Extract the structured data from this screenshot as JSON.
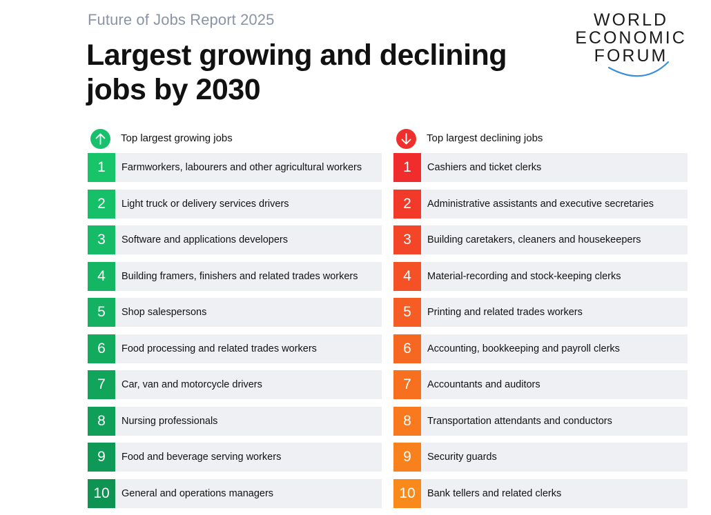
{
  "header": {
    "kicker": "Future of Jobs Report 2025",
    "title": "Largest growing and declining jobs by 2030"
  },
  "logo": {
    "lines": [
      "WORLD",
      "ECONOMIC",
      "FORUM"
    ],
    "arc_color": "#3b8fd9"
  },
  "growing": {
    "label": "Top largest growing jobs",
    "icon": "arrow-up-icon",
    "color": "#16c06c",
    "rank_colors": [
      "#18c46a",
      "#16c069",
      "#15bb67",
      "#14b664",
      "#13b161",
      "#12ab5e",
      "#11a55b",
      "#109f58",
      "#0f9956",
      "#0e9353"
    ],
    "items": [
      {
        "rank": "1",
        "job": "Farmworkers, labourers and other agricultural workers"
      },
      {
        "rank": "2",
        "job": "Light truck or delivery services drivers"
      },
      {
        "rank": "3",
        "job": "Software and applications developers"
      },
      {
        "rank": "4",
        "job": "Building framers, finishers and related trades workers"
      },
      {
        "rank": "5",
        "job": "Shop salespersons"
      },
      {
        "rank": "6",
        "job": "Food processing and related trades workers"
      },
      {
        "rank": "7",
        "job": "Car, van and motorcycle drivers"
      },
      {
        "rank": "8",
        "job": "Nursing professionals"
      },
      {
        "rank": "9",
        "job": "Food and beverage serving workers"
      },
      {
        "rank": "10",
        "job": "General and operations managers"
      }
    ]
  },
  "declining": {
    "label": "Top largest declining jobs",
    "icon": "arrow-down-icon",
    "color": "#ef2e2e",
    "rank_colors": [
      "#f12c2c",
      "#f23a2a",
      "#f34628",
      "#f45226",
      "#f55d24",
      "#f66722",
      "#f77020",
      "#f8791e",
      "#f9811d",
      "#fa891c"
    ],
    "items": [
      {
        "rank": "1",
        "job": "Cashiers and ticket clerks"
      },
      {
        "rank": "2",
        "job": "Administrative assistants and executive secretaries"
      },
      {
        "rank": "3",
        "job": "Building caretakers, cleaners and housekeepers"
      },
      {
        "rank": "4",
        "job": "Material-recording and stock-keeping clerks"
      },
      {
        "rank": "5",
        "job": "Printing and related trades workers"
      },
      {
        "rank": "6",
        "job": "Accounting, bookkeeping and payroll clerks"
      },
      {
        "rank": "7",
        "job": "Accountants and auditors"
      },
      {
        "rank": "8",
        "job": "Transportation attendants and conductors"
      },
      {
        "rank": "9",
        "job": "Security guards"
      },
      {
        "rank": "10",
        "job": "Bank tellers and related clerks"
      }
    ]
  }
}
